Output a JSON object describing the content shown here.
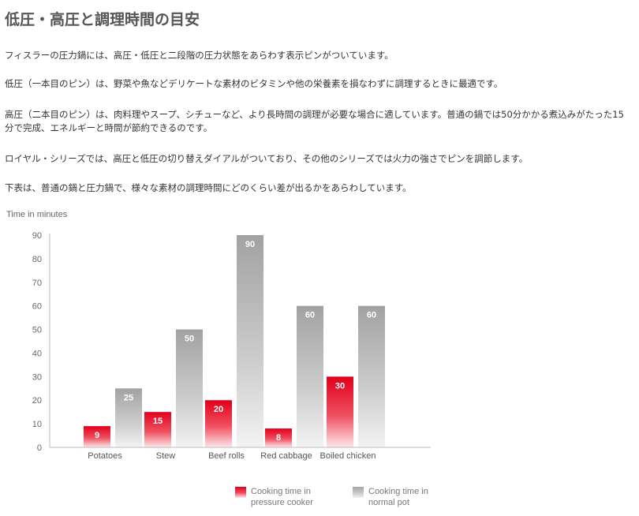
{
  "page": {
    "title": "低圧・高圧と調理時間の目安",
    "paragraphs": [
      "フィスラーの圧力鍋には、高圧・低圧と二段階の圧力状態をあらわす表示ピンがついています。",
      "低圧（一本目のピン）は、野菜や魚などデリケートな素材のビタミンや他の栄養素を損なわずに調理するときに最適です。",
      "高圧（二本目のピン）は、肉料理やスープ、シチューなど、より長時間の調理が必要な場合に適しています。普通の鍋では50分かかる煮込みがたった15分で完成、エネルギーと時間が節約できるのです。",
      "ロイヤル・シリーズでは、高圧と低圧の切り替えダイアルがついており、その他のシリーズでは火力の強さでピンを調節します。",
      "下表は、普通の鍋と圧力鍋で、様々な素材の調理時間にどのくらい差が出るかをあらわしています。"
    ]
  },
  "chart_data": {
    "type": "bar",
    "ylabel": "Time in minutes",
    "ylim": [
      0,
      90
    ],
    "yticks": [
      0,
      10,
      20,
      30,
      40,
      50,
      60,
      70,
      80,
      90
    ],
    "grid": false,
    "legend_position": "bottom",
    "categories": [
      "Potatoes",
      "Stew",
      "Beef rolls",
      "Red cabbage",
      "Boiled chicken"
    ],
    "series": [
      {
        "name": "Cooking time in pressure cooker",
        "legend_lines": [
          "Cooking time in",
          "pressure cooker"
        ],
        "color": "#e2001a",
        "values": [
          9,
          15,
          20,
          8,
          30
        ]
      },
      {
        "name": "Cooking time in normal pot",
        "legend_lines": [
          "Cooking time in",
          "normal pot"
        ],
        "color": "#a8a8a8",
        "values": [
          25,
          50,
          90,
          60,
          60
        ]
      }
    ]
  }
}
